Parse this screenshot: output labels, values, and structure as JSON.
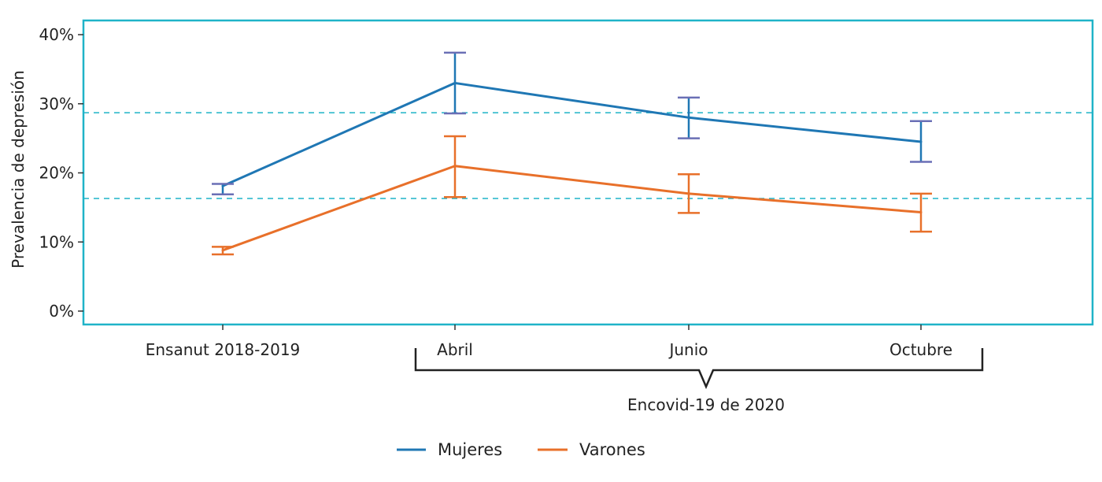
{
  "chart_data": {
    "type": "line",
    "title": "",
    "ylabel": "Prevalencia de depresión",
    "xlabel": "",
    "ylim": [
      0,
      40
    ],
    "yticks": [
      0,
      10,
      20,
      30,
      40
    ],
    "ytick_labels": [
      "0%",
      "10%",
      "20%",
      "30%",
      "40%"
    ],
    "categories": [
      "Ensanut 2018-2019",
      "Abril",
      "Junio",
      "Octubre"
    ],
    "group_label": "Encovid-19 de 2020",
    "reference_lines": [
      28.7,
      16.3
    ],
    "grid": false,
    "legend_position": "bottom",
    "series": [
      {
        "name": "Mujeres",
        "color": "#1f77b4",
        "values": [
          18.1,
          33.0,
          28.0,
          24.5
        ],
        "err_low": [
          16.9,
          28.6,
          25.0,
          21.6
        ],
        "err_high": [
          18.4,
          37.4,
          30.9,
          27.5
        ]
      },
      {
        "name": "Varones",
        "color": "#e8702a",
        "values": [
          8.8,
          21.0,
          17.0,
          14.3
        ],
        "err_low": [
          8.2,
          16.5,
          14.2,
          11.5
        ],
        "err_high": [
          9.3,
          25.3,
          19.8,
          17.0
        ]
      }
    ],
    "errorbar_cap_color": "#6a6fb5",
    "frame_color": "#1fb3c8"
  }
}
